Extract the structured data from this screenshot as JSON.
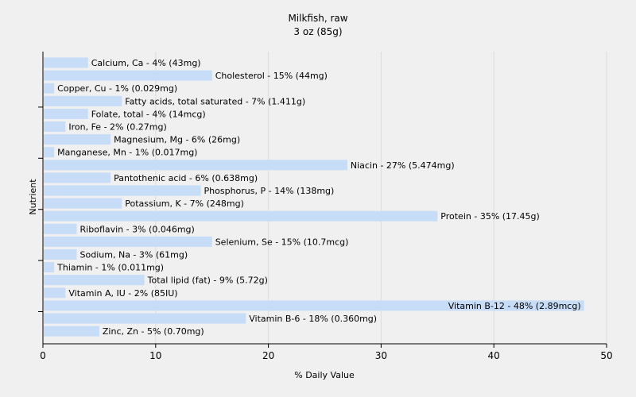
{
  "chart_data": {
    "type": "bar",
    "orientation": "horizontal",
    "title": "Milkfish, raw",
    "subtitle": "3 oz (85g)",
    "xlabel": "% Daily Value",
    "ylabel": "Nutrient",
    "xlim": [
      0,
      50
    ],
    "xticks": [
      0,
      10,
      20,
      30,
      40,
      50
    ],
    "grid": true,
    "bar_color": "#c6dcf7",
    "categories": [
      "Calcium, Ca",
      "Cholesterol",
      "Copper, Cu",
      "Fatty acids, total saturated",
      "Folate, total",
      "Iron, Fe",
      "Magnesium, Mg",
      "Manganese, Mn",
      "Niacin",
      "Pantothenic acid",
      "Phosphorus, P",
      "Potassium, K",
      "Protein",
      "Riboflavin",
      "Selenium, Se",
      "Sodium, Na",
      "Thiamin",
      "Total lipid (fat)",
      "Vitamin A, IU",
      "Vitamin B-12",
      "Vitamin B-6",
      "Zinc, Zn"
    ],
    "values": [
      4,
      15,
      1,
      7,
      4,
      2,
      6,
      1,
      27,
      6,
      14,
      7,
      35,
      3,
      15,
      3,
      1,
      9,
      2,
      48,
      18,
      5
    ],
    "labels": [
      "Calcium, Ca - 4% (43mg)",
      "Cholesterol - 15% (44mg)",
      "Copper, Cu - 1% (0.029mg)",
      "Fatty acids, total saturated - 7% (1.411g)",
      "Folate, total - 4% (14mcg)",
      "Iron, Fe - 2% (0.27mg)",
      "Magnesium, Mg - 6% (26mg)",
      "Manganese, Mn - 1% (0.017mg)",
      "Niacin - 27% (5.474mg)",
      "Pantothenic acid - 6% (0.638mg)",
      "Phosphorus, P - 14% (138mg)",
      "Potassium, K - 7% (248mg)",
      "Protein - 35% (17.45g)",
      "Riboflavin - 3% (0.046mg)",
      "Selenium, Se - 15% (10.7mcg)",
      "Sodium, Na - 3% (61mg)",
      "Thiamin - 1% (0.011mg)",
      "Total lipid (fat) - 9% (5.72g)",
      "Vitamin A, IU - 2% (85IU)",
      "Vitamin B-12 - 48% (2.89mcg)",
      "Vitamin B-6 - 18% (0.360mg)",
      "Zinc, Zn - 5% (0.70mg)"
    ]
  }
}
